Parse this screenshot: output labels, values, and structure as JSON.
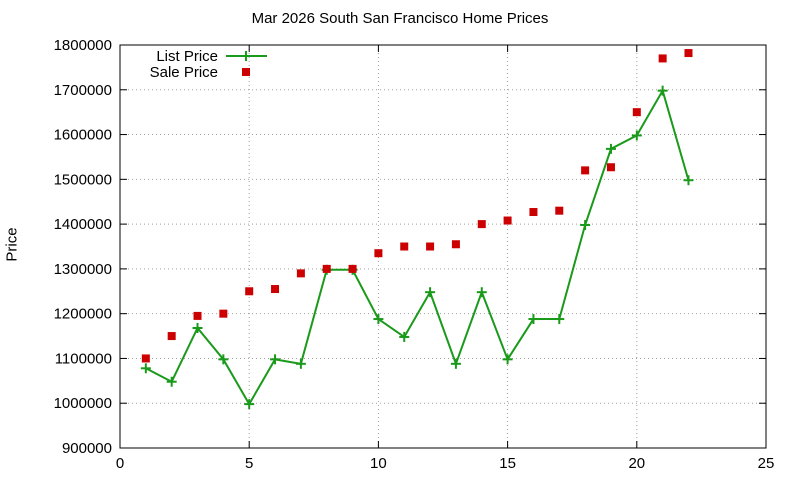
{
  "chart_data": {
    "type": "line",
    "title": "Mar 2026 South San Francisco Home Prices",
    "xlabel": "",
    "ylabel": "Price",
    "xlim": [
      0,
      25
    ],
    "ylim": [
      900000,
      1800000
    ],
    "x_ticks": [
      "0",
      "5",
      "10",
      "15",
      "20",
      "25"
    ],
    "y_ticks": [
      "900000",
      "1000000",
      "1100000",
      "1200000",
      "1300000",
      "1400000",
      "1500000",
      "1600000",
      "1700000",
      "1800000"
    ],
    "grid": true,
    "legend_position": "top-left",
    "series": [
      {
        "name": "List Price",
        "style": "line-with-plus-markers",
        "color": "#1a9a1a",
        "x": [
          1,
          2,
          3,
          4,
          5,
          6,
          7,
          8,
          9,
          10,
          11,
          12,
          13,
          14,
          15,
          16,
          17,
          18,
          19,
          20,
          21,
          22
        ],
        "y": [
          1078000,
          1048000,
          1168000,
          1098000,
          998000,
          1098000,
          1088000,
          1298000,
          1298000,
          1188000,
          1148000,
          1248000,
          1088000,
          1248000,
          1098000,
          1188000,
          1188000,
          1398000,
          1568000,
          1598000,
          1698000,
          1498000
        ]
      },
      {
        "name": "Sale Price",
        "style": "square-markers",
        "color": "#cc0000",
        "x": [
          1,
          2,
          3,
          4,
          5,
          6,
          7,
          8,
          9,
          10,
          11,
          12,
          13,
          14,
          15,
          16,
          17,
          18,
          19,
          20,
          21,
          22
        ],
        "y": [
          1100000,
          1150000,
          1195000,
          1200000,
          1250000,
          1255000,
          1290000,
          1300000,
          1300000,
          1335000,
          1350000,
          1350000,
          1355000,
          1400000,
          1408000,
          1427000,
          1430000,
          1520000,
          1527000,
          1650000,
          1770000,
          1782000
        ]
      }
    ]
  }
}
